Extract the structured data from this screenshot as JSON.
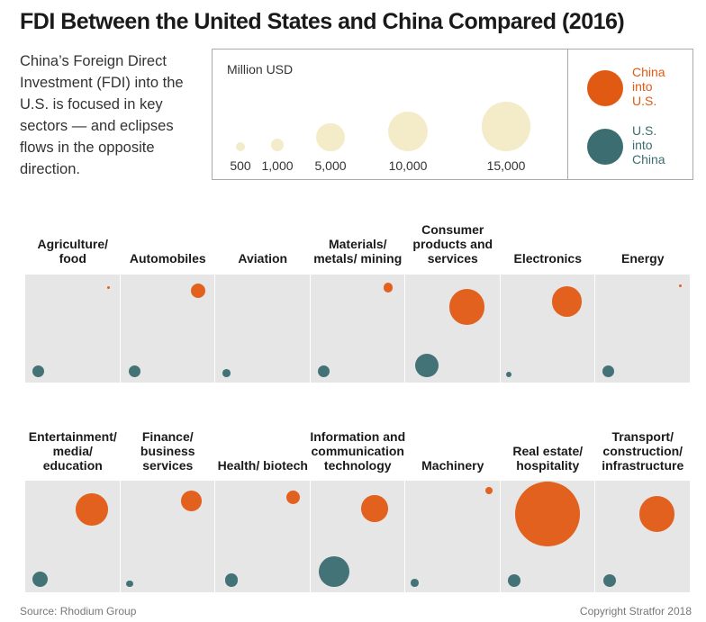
{
  "header": {
    "title": "FDI Between the United States and China Compared (2016)",
    "subtitle": "China’s Foreign Direct Investment (FDI) into the U.S. is focused in key sectors — and eclipses flows in the opposite direction."
  },
  "legend": {
    "unit": "Million USD",
    "sizes": [
      {
        "value": 500,
        "label": "500"
      },
      {
        "value": 1000,
        "label": "1,000"
      },
      {
        "value": 5000,
        "label": "5,000"
      },
      {
        "value": 10000,
        "label": "10,000"
      },
      {
        "value": 15000,
        "label": "15,000"
      }
    ],
    "keys": [
      {
        "label": "China into U.S.",
        "color": "#E15A14"
      },
      {
        "label": "U.S. into China",
        "color": "#3C6E71"
      }
    ]
  },
  "colors": {
    "china_into_us": "#E15A14",
    "us_into_china": "#3C6E71",
    "legend_bubble": "#F4EBC9",
    "panel_background": "#E6E6E6"
  },
  "chart_data": {
    "type": "bubble",
    "unit": "Million USD",
    "series": [
      {
        "name": "China into U.S.",
        "color": "#E15A14"
      },
      {
        "name": "U.S. into China",
        "color": "#3C6E71"
      }
    ],
    "rows": [
      {
        "categories": [
          {
            "name": "Agriculture/ food",
            "china_into_us": 10,
            "us_into_china": 900
          },
          {
            "name": "Automobiles",
            "china_into_us": 1400,
            "us_into_china": 900
          },
          {
            "name": "Aviation",
            "china_into_us": 0,
            "us_into_china": 380
          },
          {
            "name": "Materials/ metals/ mining",
            "china_into_us": 600,
            "us_into_china": 900
          },
          {
            "name": "Consumer products and services",
            "china_into_us": 7800,
            "us_into_china": 3400
          },
          {
            "name": "Electronics",
            "china_into_us": 5600,
            "us_into_china": 200
          },
          {
            "name": "Energy",
            "china_into_us": 10,
            "us_into_china": 900
          }
        ]
      },
      {
        "categories": [
          {
            "name": "Entertainment/ media/ education",
            "china_into_us": 6400,
            "us_into_china": 1500
          },
          {
            "name": "Finance/ business services",
            "china_into_us": 2600,
            "us_into_china": 260
          },
          {
            "name": "Health/ biotech",
            "china_into_us": 1200,
            "us_into_china": 1100
          },
          {
            "name": "Information and communication technology",
            "china_into_us": 4400,
            "us_into_china": 5800
          },
          {
            "name": "Machinery",
            "china_into_us": 350,
            "us_into_china": 380
          },
          {
            "name": "Real estate/ hospitality",
            "china_into_us": 26000,
            "us_into_china": 1000
          },
          {
            "name": "Transport/ construction/ infrastructure",
            "china_into_us": 8000,
            "us_into_china": 1000
          }
        ]
      }
    ]
  },
  "footer": {
    "source": "Source: Rhodium Group",
    "copyright": "Copyright Stratfor 2018"
  }
}
